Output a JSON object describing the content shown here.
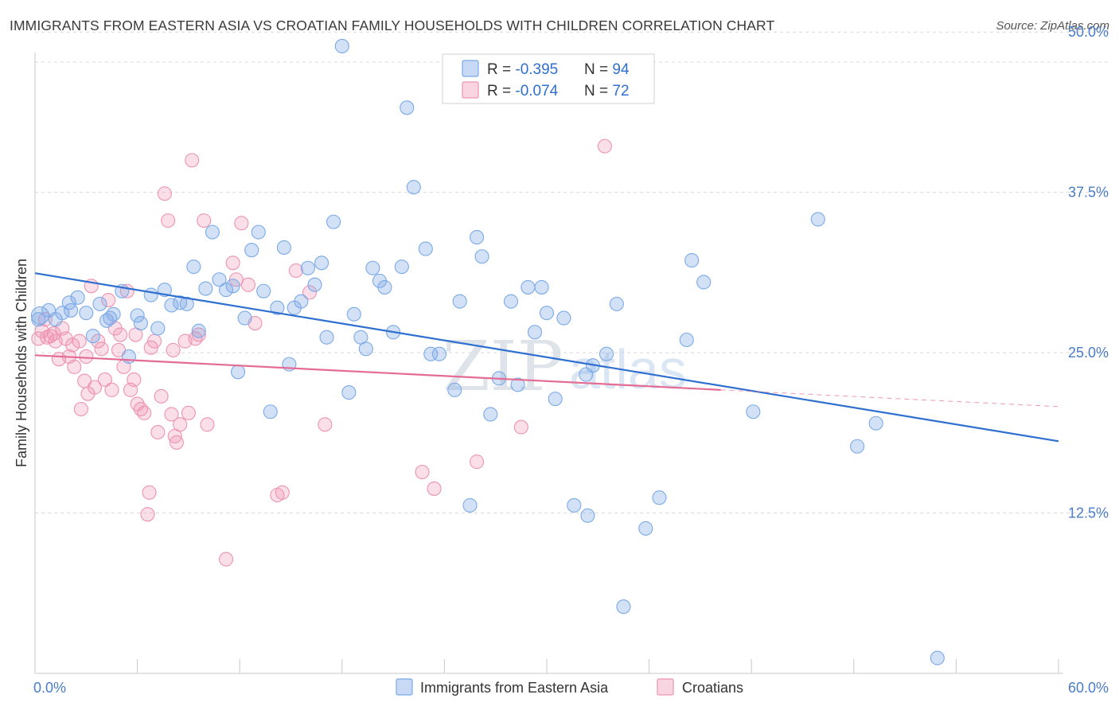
{
  "title": "IMMIGRANTS FROM EASTERN ASIA VS CROATIAN FAMILY HOUSEHOLDS WITH CHILDREN CORRELATION CHART",
  "source": "Source: ZipAtlas.com",
  "watermark": {
    "zip": "ZIP",
    "atlas": "atlas"
  },
  "colors": {
    "blue": "#7aaae8",
    "blue_fill": "rgba(130,170,230,0.35)",
    "blue_line": "#2f6fd0",
    "pink": "#ee93b1",
    "pink_fill": "rgba(240,150,180,0.30)",
    "pink_line": "#e46b93",
    "axis_text": "#4a7cc9",
    "grid": "#d9d9d9"
  },
  "legend": {
    "rows": [
      {
        "r_label": "R = ",
        "r_value": "-0.395",
        "n_label": "N = ",
        "n_value": "94"
      },
      {
        "r_label": "R = ",
        "r_value": "-0.074",
        "n_label": "N = ",
        "n_value": "72"
      }
    ]
  },
  "bottom_legend": [
    "Immigrants from Eastern Asia",
    "Croatians"
  ],
  "chart_data": {
    "type": "scatter",
    "title": "IMMIGRANTS FROM EASTERN ASIA VS CROATIAN FAMILY HOUSEHOLDS WITH CHILDREN CORRELATION CHART",
    "xlabel": "",
    "ylabel": "Family Households with Children",
    "xlim": [
      0,
      60
    ],
    "ylim": [
      0,
      52
    ],
    "x_tick_labels": [
      {
        "value": 0,
        "label": "0.0%"
      },
      {
        "value": 60,
        "label": "60.0%"
      }
    ],
    "y_tick_labels": [
      {
        "value": 12.5,
        "label": "12.5%"
      },
      {
        "value": 25.0,
        "label": "25.0%"
      },
      {
        "value": 37.5,
        "label": "37.5%"
      },
      {
        "value": 50.0,
        "label": "50.0%"
      }
    ],
    "grid": true,
    "legend_position": "top-center",
    "series": [
      {
        "name": "Immigrants from Eastern Asia",
        "color": "#7aaae8",
        "trend": {
          "x": [
            0,
            60
          ],
          "y": [
            31.2,
            18.1
          ],
          "dashed_from": null
        },
        "points": [
          [
            0.3,
            27.9
          ],
          [
            0.8,
            28.3
          ],
          [
            1.2,
            27.6
          ],
          [
            1.6,
            28.1
          ],
          [
            2.1,
            28.3
          ],
          [
            2.5,
            29.3
          ],
          [
            3.0,
            28.1
          ],
          [
            3.4,
            26.3
          ],
          [
            3.8,
            28.8
          ],
          [
            4.2,
            27.5
          ],
          [
            4.6,
            28.0
          ],
          [
            5.1,
            29.8
          ],
          [
            5.5,
            24.7
          ],
          [
            6.0,
            27.9
          ],
          [
            6.2,
            27.3
          ],
          [
            6.8,
            29.5
          ],
          [
            7.2,
            26.9
          ],
          [
            7.6,
            29.9
          ],
          [
            8.0,
            28.7
          ],
          [
            8.5,
            28.9
          ],
          [
            8.9,
            28.8
          ],
          [
            9.3,
            31.7
          ],
          [
            9.6,
            26.7
          ],
          [
            10.0,
            30.0
          ],
          [
            10.4,
            34.4
          ],
          [
            10.8,
            30.7
          ],
          [
            11.2,
            29.9
          ],
          [
            11.6,
            30.2
          ],
          [
            11.9,
            23.5
          ],
          [
            12.3,
            27.7
          ],
          [
            12.7,
            33.0
          ],
          [
            13.1,
            34.4
          ],
          [
            13.4,
            29.8
          ],
          [
            13.8,
            20.4
          ],
          [
            14.2,
            28.5
          ],
          [
            14.6,
            33.2
          ],
          [
            14.9,
            24.1
          ],
          [
            15.2,
            28.5
          ],
          [
            15.6,
            29.0
          ],
          [
            16.0,
            31.6
          ],
          [
            16.4,
            30.3
          ],
          [
            16.8,
            32.0
          ],
          [
            17.1,
            26.2
          ],
          [
            17.5,
            35.2
          ],
          [
            18.0,
            48.9
          ],
          [
            18.4,
            21.9
          ],
          [
            18.7,
            28.0
          ],
          [
            19.1,
            26.2
          ],
          [
            19.4,
            25.3
          ],
          [
            19.8,
            31.6
          ],
          [
            20.2,
            30.6
          ],
          [
            20.5,
            30.1
          ],
          [
            21.0,
            26.6
          ],
          [
            21.5,
            31.7
          ],
          [
            21.8,
            44.1
          ],
          [
            22.2,
            37.9
          ],
          [
            22.9,
            33.1
          ],
          [
            23.2,
            24.9
          ],
          [
            23.7,
            24.9
          ],
          [
            24.6,
            22.1
          ],
          [
            24.9,
            29.0
          ],
          [
            25.5,
            13.1
          ],
          [
            25.9,
            34.0
          ],
          [
            26.2,
            32.5
          ],
          [
            26.7,
            20.2
          ],
          [
            27.2,
            23.0
          ],
          [
            27.9,
            29.0
          ],
          [
            28.3,
            22.5
          ],
          [
            28.9,
            30.1
          ],
          [
            29.3,
            26.6
          ],
          [
            29.7,
            30.1
          ],
          [
            30.0,
            28.1
          ],
          [
            30.5,
            21.4
          ],
          [
            31.0,
            27.7
          ],
          [
            31.6,
            13.1
          ],
          [
            32.3,
            23.3
          ],
          [
            32.4,
            12.3
          ],
          [
            32.7,
            24.0
          ],
          [
            33.5,
            24.9
          ],
          [
            34.1,
            28.8
          ],
          [
            34.5,
            5.2
          ],
          [
            35.8,
            11.3
          ],
          [
            36.6,
            13.7
          ],
          [
            38.2,
            26.0
          ],
          [
            38.5,
            32.2
          ],
          [
            39.2,
            30.5
          ],
          [
            42.1,
            20.4
          ],
          [
            45.9,
            35.4
          ],
          [
            48.2,
            17.7
          ],
          [
            49.3,
            19.5
          ],
          [
            52.9,
            1.2
          ],
          [
            0.2,
            27.6
          ],
          [
            2.0,
            28.9
          ],
          [
            4.4,
            27.7
          ]
        ]
      },
      {
        "name": "Croatians",
        "color": "#ee93b1",
        "trend": {
          "x": [
            0,
            40.2
          ],
          "y": [
            24.8,
            22.1
          ],
          "dashed_to": [
            60,
            20.8
          ]
        },
        "points": [
          [
            0.2,
            26.1
          ],
          [
            0.4,
            26.7
          ],
          [
            0.6,
            27.6
          ],
          [
            0.9,
            26.3
          ],
          [
            1.1,
            26.5
          ],
          [
            1.4,
            24.5
          ],
          [
            1.6,
            26.9
          ],
          [
            1.8,
            26.1
          ],
          [
            2.0,
            24.7
          ],
          [
            2.3,
            23.9
          ],
          [
            2.6,
            25.9
          ],
          [
            2.7,
            20.6
          ],
          [
            2.9,
            22.8
          ],
          [
            3.1,
            21.8
          ],
          [
            3.3,
            30.2
          ],
          [
            3.5,
            22.3
          ],
          [
            3.7,
            25.9
          ],
          [
            3.9,
            25.3
          ],
          [
            4.1,
            22.9
          ],
          [
            4.3,
            29.1
          ],
          [
            4.5,
            22.1
          ],
          [
            4.7,
            26.9
          ],
          [
            5.0,
            26.4
          ],
          [
            5.2,
            23.9
          ],
          [
            5.4,
            29.8
          ],
          [
            5.6,
            22.1
          ],
          [
            5.8,
            22.9
          ],
          [
            6.0,
            21.0
          ],
          [
            6.2,
            20.6
          ],
          [
            6.4,
            20.3
          ],
          [
            6.6,
            12.4
          ],
          [
            6.7,
            14.1
          ],
          [
            7.0,
            25.9
          ],
          [
            7.2,
            18.8
          ],
          [
            7.4,
            21.6
          ],
          [
            7.6,
            37.4
          ],
          [
            7.8,
            35.3
          ],
          [
            8.0,
            20.2
          ],
          [
            8.2,
            18.5
          ],
          [
            8.3,
            18.0
          ],
          [
            8.5,
            19.4
          ],
          [
            8.8,
            25.9
          ],
          [
            9.0,
            20.3
          ],
          [
            9.2,
            40.0
          ],
          [
            9.6,
            26.4
          ],
          [
            9.9,
            35.3
          ],
          [
            10.1,
            19.4
          ],
          [
            11.2,
            8.9
          ],
          [
            11.6,
            32.0
          ],
          [
            11.8,
            30.7
          ],
          [
            12.1,
            35.1
          ],
          [
            12.5,
            30.3
          ],
          [
            12.9,
            27.3
          ],
          [
            14.2,
            13.9
          ],
          [
            14.5,
            14.1
          ],
          [
            15.3,
            31.4
          ],
          [
            16.1,
            29.7
          ],
          [
            17.0,
            19.4
          ],
          [
            22.7,
            15.7
          ],
          [
            23.4,
            14.4
          ],
          [
            25.9,
            16.5
          ],
          [
            28.5,
            19.2
          ],
          [
            33.4,
            41.1
          ],
          [
            0.7,
            26.2
          ],
          [
            1.2,
            25.9
          ],
          [
            2.2,
            25.6
          ],
          [
            3.0,
            24.7
          ],
          [
            4.9,
            25.2
          ],
          [
            5.9,
            26.4
          ],
          [
            6.8,
            25.4
          ],
          [
            8.1,
            25.2
          ],
          [
            9.4,
            26.1
          ]
        ]
      }
    ]
  }
}
